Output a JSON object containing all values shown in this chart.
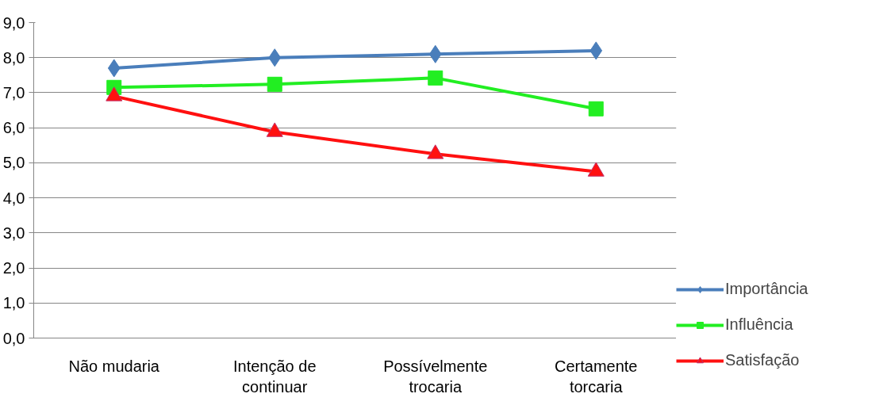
{
  "chart_data": {
    "type": "line",
    "categories": [
      "Não mudaria",
      "Intenção de continuar",
      "Possívelmente trocaria",
      "Certamente torcaria"
    ],
    "series": [
      {
        "name": "Importância",
        "color": "#4a7ebb",
        "marker": "diamond",
        "values": [
          7.7,
          8.0,
          8.1,
          8.2
        ]
      },
      {
        "name": "Influência",
        "color": "#22ee22",
        "marker": "square",
        "values": [
          7.15,
          7.24,
          7.42,
          6.54
        ]
      },
      {
        "name": "Satisfação",
        "color": "#ff1010",
        "marker": "triangle",
        "values": [
          6.9,
          5.88,
          5.25,
          4.75
        ]
      }
    ],
    "ylim": [
      0,
      9
    ],
    "yticks": [
      {
        "value": 0,
        "label": "0,0"
      },
      {
        "value": 1,
        "label": "1,0"
      },
      {
        "value": 2,
        "label": "2,0"
      },
      {
        "value": 3,
        "label": "3,0"
      },
      {
        "value": 4,
        "label": "4,0"
      },
      {
        "value": 5,
        "label": "5,0"
      },
      {
        "value": 6,
        "label": "6,0"
      },
      {
        "value": 7,
        "label": "7,0"
      },
      {
        "value": 8,
        "label": "8,0"
      },
      {
        "value": 9,
        "label": "9,0"
      }
    ],
    "grid": "y",
    "legend": "right",
    "line_style": "solid"
  }
}
